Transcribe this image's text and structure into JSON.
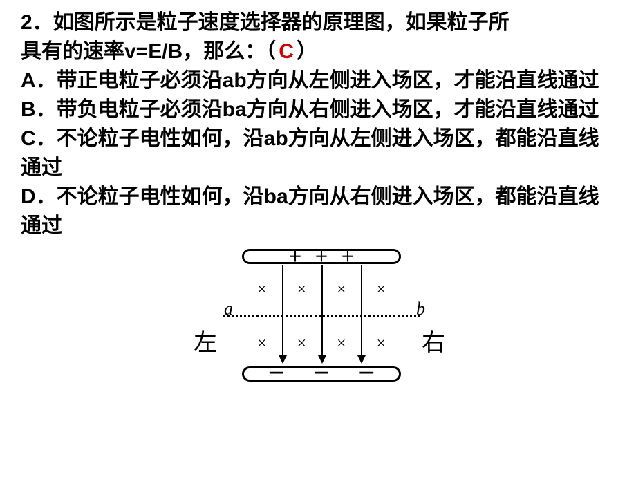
{
  "question": {
    "number": "2．",
    "stem_line1": "如图所示是粒子速度选择器的原理图，如果粒子所",
    "stem_line2_pre": "具有的速率v=E/B，那么：（",
    "answer_letter": "C",
    "stem_line2_post": "）",
    "options": {
      "A": "A．带正电粒子必须沿ab方向从左侧进入场区，才能沿直线通过",
      "B": "B．带负电粒子必须沿ba方向从右侧进入场区，才能沿直线通过",
      "C": "C．不论粒子电性如何，沿ab方向从左侧进入场区，都能沿直线通过",
      "D": "D．不论粒子电性如何，沿ba方向从右侧进入场区，都能沿直线通过"
    }
  },
  "figure": {
    "top_plate_sign": "＋＋＋",
    "bot_plate_sign": "－ － －",
    "x_symbol": "×",
    "label_a": "a",
    "label_b": "b",
    "side_left": "左",
    "side_right": "右",
    "colors": {
      "text": "#000000",
      "answer": "#cc0000",
      "background": "#ffffff"
    }
  }
}
